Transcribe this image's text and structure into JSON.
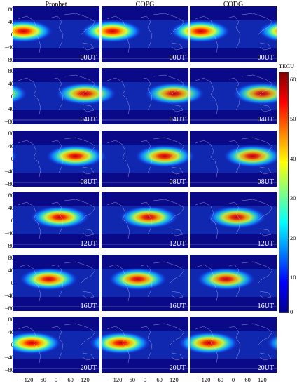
{
  "columns": [
    "Prophet",
    "COPG",
    "CODG"
  ],
  "rows": [
    {
      "time": "00UT",
      "peak_lon": -135,
      "peak_lat": 10,
      "strength": 0.95
    },
    {
      "time": "04UT",
      "peak_lon": 120,
      "peak_lat": 8,
      "strength": 0.8
    },
    {
      "time": "08UT",
      "peak_lon": 80,
      "peak_lat": 8,
      "strength": 0.85
    },
    {
      "time": "12UT",
      "peak_lon": 15,
      "peak_lat": 10,
      "strength": 0.85
    },
    {
      "time": "16UT",
      "peak_lon": -30,
      "peak_lat": 12,
      "strength": 0.85
    },
    {
      "time": "20UT",
      "peak_lon": -100,
      "peak_lat": 5,
      "strength": 0.9
    }
  ],
  "y_ticks": [
    "80",
    "40",
    "0",
    "−40",
    "−80"
  ],
  "x_ticks": [
    "−120",
    "−60",
    "0",
    "60",
    "120"
  ],
  "colorbar": {
    "unit": "TECU",
    "ticks": [
      "60",
      "50",
      "40",
      "30",
      "20",
      "10",
      "0"
    ],
    "colormap": [
      "#00008f",
      "#0000ff",
      "#0080ff",
      "#00ffff",
      "#80ff80",
      "#ffff00",
      "#ff8000",
      "#ff0000",
      "#800000"
    ]
  }
}
